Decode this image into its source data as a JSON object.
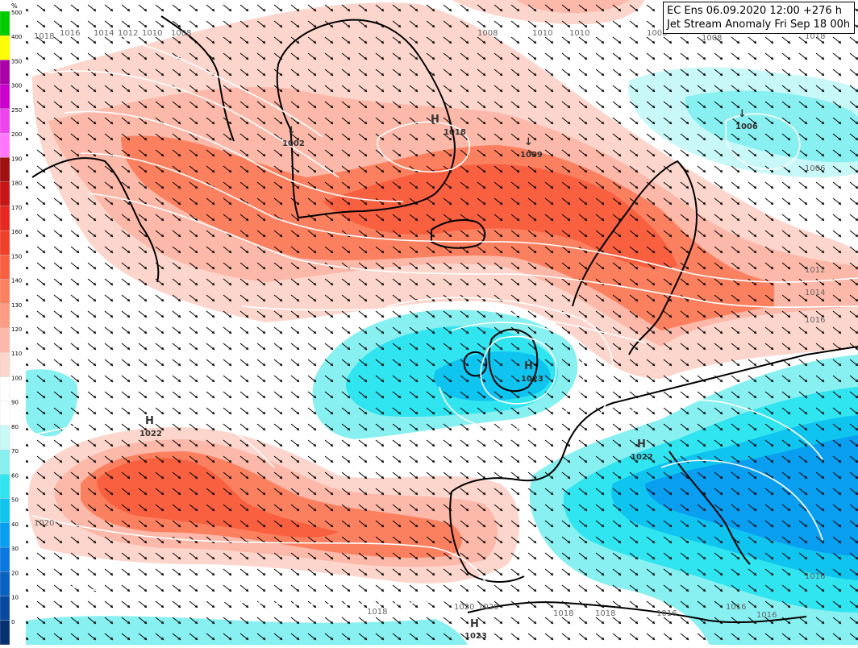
{
  "header": {
    "line1": "EC Ens 06.09.2020 12:00 +276 h",
    "line2": "Jet Stream Anomaly Fri Sep 18 00h"
  },
  "legend": {
    "unit": "%",
    "levels": [
      "500",
      "400",
      "350",
      "300",
      "250",
      "200",
      "190",
      "180",
      "170",
      "160",
      "150",
      "140",
      "130",
      "120",
      "110",
      "100",
      "90",
      "80",
      "70",
      "60",
      "50",
      "40",
      "30",
      "20",
      "10",
      "0"
    ],
    "colors": [
      "#00cc00",
      "#ffff00",
      "#aa00aa",
      "#cc00cc",
      "#ee44ee",
      "#ff77ff",
      "#a01010",
      "#c81414",
      "#e62820",
      "#f04028",
      "#f86040",
      "#fb8060",
      "#fc9c84",
      "#fcb8a8",
      "#fcd6cc",
      "#ffffff",
      "#ffffff",
      "#c8f8f8",
      "#88f0f0",
      "#30e4f0",
      "#10c4f0",
      "#0a9ef0",
      "#0a78e0",
      "#0860c0",
      "#0848a0",
      "#063070"
    ]
  },
  "pressure_centers": [
    {
      "type": "L",
      "value": "1002"
    },
    {
      "type": "H",
      "value": "1018"
    },
    {
      "type": "L",
      "value": "1009"
    },
    {
      "type": "L",
      "value": "1006"
    },
    {
      "type": "H",
      "value": "1023"
    },
    {
      "type": "H",
      "value": "1022"
    },
    {
      "type": "H",
      "value": "1022"
    },
    {
      "type": "H",
      "value": "1023"
    }
  ],
  "isobar_labels": [
    "1018",
    "1016",
    "1014",
    "1012",
    "1010",
    "1008",
    "1008",
    "1010",
    "1010",
    "1008",
    "1008",
    "1006",
    "1012",
    "1014",
    "1016",
    "1020",
    "1018",
    "1020",
    "1020",
    "1018",
    "1018",
    "1016",
    "1016",
    "1016",
    "1016",
    "1018"
  ]
}
